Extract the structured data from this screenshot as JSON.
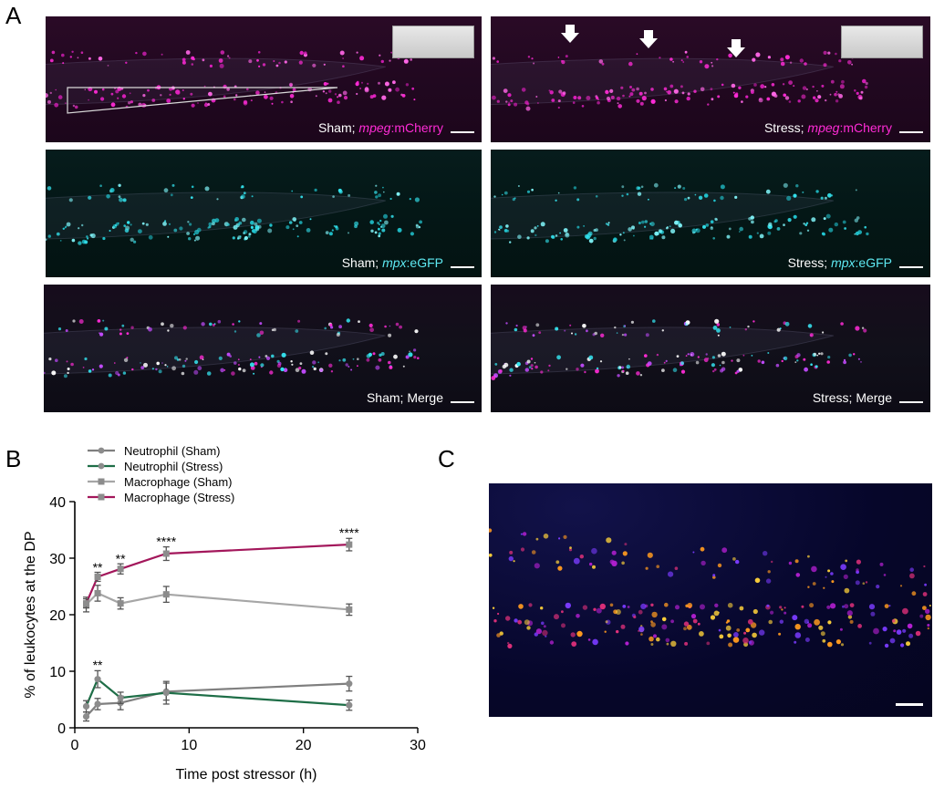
{
  "figure": {
    "panel_labels": {
      "a": "A",
      "b": "B",
      "c": "C"
    },
    "panel_a": {
      "images": [
        {
          "id": "sham-mpeg",
          "condition": "Sham;",
          "gene": "mpeg",
          "suffix": ":mCherry"
        },
        {
          "id": "stress-mpeg",
          "condition": "Stress;",
          "gene": "mpeg",
          "suffix": ":mCherry"
        },
        {
          "id": "sham-mpx",
          "condition": "Sham;",
          "gene": "mpx",
          "suffix": ":eGFP"
        },
        {
          "id": "stress-mpx",
          "condition": "Stress;",
          "gene": "mpx",
          "suffix": ":eGFP"
        },
        {
          "id": "sham-merge",
          "condition": "Sham;",
          "gene": "",
          "suffix": "Merge"
        },
        {
          "id": "stress-merge",
          "condition": "Stress;",
          "gene": "",
          "suffix": "Merge"
        }
      ]
    },
    "panel_c": {}
  },
  "chart_data": {
    "type": "line",
    "xlabel": "Time post stressor (h)",
    "ylabel": "% of leukocytes at the DP",
    "xlim": [
      0,
      30
    ],
    "ylim": [
      0,
      40
    ],
    "xticks": [
      0,
      10,
      20,
      30
    ],
    "yticks": [
      0,
      10,
      20,
      30,
      40
    ],
    "x": [
      1,
      2,
      4,
      8,
      24
    ],
    "legend_position": "top-left",
    "series": [
      {
        "name": "Neutrophil (Sham)",
        "marker": "circle",
        "color": "#7f7f7f",
        "values": [
          2.0,
          4.2,
          4.4,
          6.4,
          7.8
        ],
        "errors": [
          0.8,
          1.0,
          1.2,
          1.5,
          1.3
        ]
      },
      {
        "name": "Neutrophil (Stress)",
        "marker": "circle",
        "color": "#1e6e47",
        "values": [
          3.8,
          8.6,
          5.3,
          6.2,
          4.0
        ],
        "errors": [
          1.0,
          1.5,
          1.0,
          2.0,
          0.9
        ]
      },
      {
        "name": "Macrophage (Sham)",
        "marker": "square",
        "color": "#a6a6a6",
        "values": [
          21.8,
          23.8,
          22.0,
          23.6,
          20.9
        ],
        "errors": [
          1.3,
          1.4,
          1.0,
          1.4,
          1.0
        ]
      },
      {
        "name": "Macrophage (Stress)",
        "marker": "square",
        "color": "#a3175b",
        "values": [
          22.0,
          26.7,
          28.1,
          30.8,
          32.4
        ],
        "errors": [
          0.8,
          0.8,
          0.9,
          1.2,
          1.1
        ]
      }
    ],
    "annotations": [
      {
        "x": 2,
        "y": 27.6,
        "text": "**"
      },
      {
        "x": 4,
        "y": 29.1,
        "text": "**"
      },
      {
        "x": 8,
        "y": 32.2,
        "text": "****"
      },
      {
        "x": 24,
        "y": 33.7,
        "text": "****"
      },
      {
        "x": 2,
        "y": 10.3,
        "text": "**"
      }
    ]
  }
}
